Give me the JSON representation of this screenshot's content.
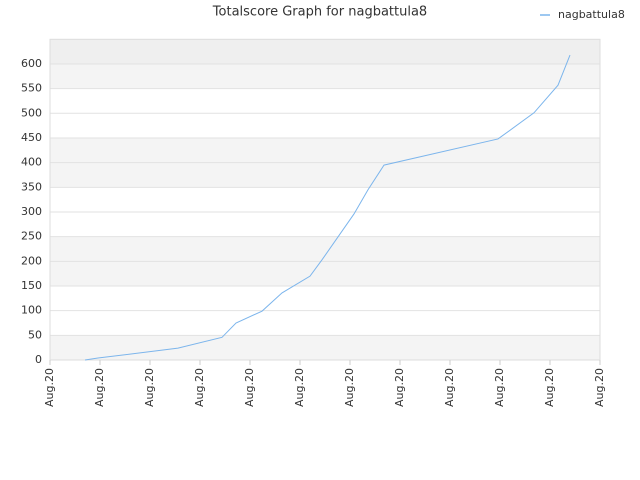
{
  "chart_data": {
    "type": "line",
    "title": "Totalscore Graph for nagbattula8",
    "x": [
      0.7,
      0.96,
      2.56,
      3.44,
      3.72,
      4.24,
      4.64,
      5.2,
      5.44,
      6.08,
      6.36,
      6.68,
      8.96,
      9.68,
      10.16,
      10.4
    ],
    "series": [
      {
        "name": "nagbattula8",
        "color": "#7cb5ec",
        "values": [
          0,
          4,
          24,
          46,
          75,
          99,
          136,
          170,
          203,
          296,
          345,
          395,
          448,
          501,
          557,
          618
        ]
      }
    ],
    "xlim": [
      0,
      11
    ],
    "xticks": [
      {
        "value": 0,
        "label": "Aug.20"
      },
      {
        "value": 1,
        "label": "Aug.20"
      },
      {
        "value": 2,
        "label": "Aug.20"
      },
      {
        "value": 3,
        "label": "Aug.20"
      },
      {
        "value": 4,
        "label": "Aug.20"
      },
      {
        "value": 5,
        "label": "Aug.20"
      },
      {
        "value": 6,
        "label": "Aug.20"
      },
      {
        "value": 7,
        "label": "Aug.20"
      },
      {
        "value": 8,
        "label": "Aug.20"
      },
      {
        "value": 9,
        "label": "Aug.20"
      },
      {
        "value": 10,
        "label": "Aug.20"
      },
      {
        "value": 11,
        "label": "Aug.20"
      }
    ],
    "ylim": [
      0,
      650
    ],
    "yticks": [
      0,
      50,
      100,
      150,
      200,
      250,
      300,
      350,
      400,
      450,
      500,
      550,
      600
    ],
    "grid": true,
    "legend": "top-right"
  }
}
